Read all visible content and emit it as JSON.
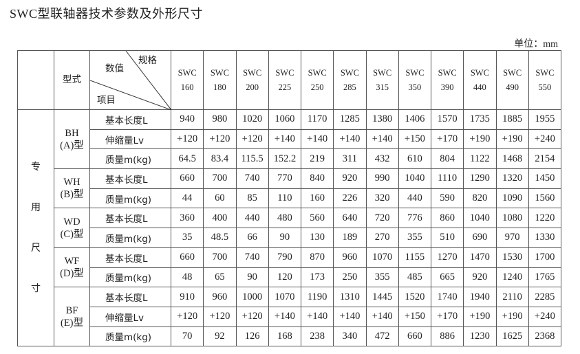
{
  "title": "SWC型联轴器技术参数及外形尺寸",
  "unit_label": "单位：mm",
  "header": {
    "type_label": "型式",
    "value_label": "数值",
    "spec_label": "规格",
    "item_label": "项目",
    "models": [
      "SWC 160",
      "SWC 180",
      "SWC 200",
      "SWC 225",
      "SWC 250",
      "SWC 285",
      "SWC 315",
      "SWC 350",
      "SWC 390",
      "SWC 440",
      "SWC 490",
      "SWC 550"
    ]
  },
  "category_chars": [
    "专",
    "用",
    "尺",
    "寸"
  ],
  "groups": [
    {
      "type": "BH (A)型",
      "rows": [
        {
          "item": "基本长度L",
          "values": [
            "940",
            "980",
            "1020",
            "1060",
            "1170",
            "1285",
            "1380",
            "1406",
            "1570",
            "1735",
            "1885",
            "1955"
          ]
        },
        {
          "item": "伸缩量Lv",
          "values": [
            "+120",
            "+120",
            "+120",
            "+140",
            "+140",
            "+140",
            "+140",
            "+150",
            "+170",
            "+190",
            "+190",
            "+240"
          ]
        },
        {
          "item": "质量m(kg)",
          "values": [
            "64.5",
            "83.4",
            "115.5",
            "152.2",
            "219",
            "311",
            "432",
            "610",
            "804",
            "1122",
            "1468",
            "2154"
          ]
        }
      ]
    },
    {
      "type": "WH (B)型",
      "rows": [
        {
          "item": "基本长度L",
          "values": [
            "660",
            "700",
            "740",
            "770",
            "840",
            "920",
            "990",
            "1040",
            "1110",
            "1290",
            "1320",
            "1450"
          ]
        },
        {
          "item": "质量m(kg)",
          "values": [
            "44",
            "60",
            "85",
            "110",
            "160",
            "226",
            "320",
            "440",
            "590",
            "820",
            "1090",
            "1560"
          ]
        }
      ]
    },
    {
      "type": "WD (C)型",
      "rows": [
        {
          "item": "基本长度L",
          "values": [
            "360",
            "400",
            "440",
            "480",
            "560",
            "640",
            "720",
            "776",
            "860",
            "1040",
            "1080",
            "1220"
          ]
        },
        {
          "item": "质量m(kg)",
          "values": [
            "35",
            "48.5",
            "66",
            "90",
            "130",
            "189",
            "270",
            "355",
            "510",
            "690",
            "970",
            "1330"
          ]
        }
      ]
    },
    {
      "type": "WF (D)型",
      "rows": [
        {
          "item": "基本长度L",
          "values": [
            "660",
            "700",
            "740",
            "790",
            "870",
            "960",
            "1070",
            "1155",
            "1270",
            "1470",
            "1530",
            "1700"
          ]
        },
        {
          "item": "质量m(kg)",
          "values": [
            "48",
            "65",
            "90",
            "120",
            "173",
            "250",
            "355",
            "485",
            "665",
            "920",
            "1240",
            "1765"
          ]
        }
      ]
    },
    {
      "type": "BF (E)型",
      "rows": [
        {
          "item": "基本长度L",
          "values": [
            "910",
            "960",
            "1000",
            "1070",
            "1190",
            "1310",
            "1445",
            "1520",
            "1740",
            "1940",
            "2110",
            "2285"
          ]
        },
        {
          "item": "伸缩量Lv",
          "values": [
            "+120",
            "+120",
            "+120",
            "+140",
            "+140",
            "+140",
            "+140",
            "+150",
            "+170",
            "+190",
            "+190",
            "+240"
          ]
        },
        {
          "item": "质量m(kg)",
          "values": [
            "70",
            "92",
            "126",
            "168",
            "238",
            "340",
            "472",
            "660",
            "886",
            "1230",
            "1625",
            "2368"
          ]
        }
      ]
    }
  ]
}
